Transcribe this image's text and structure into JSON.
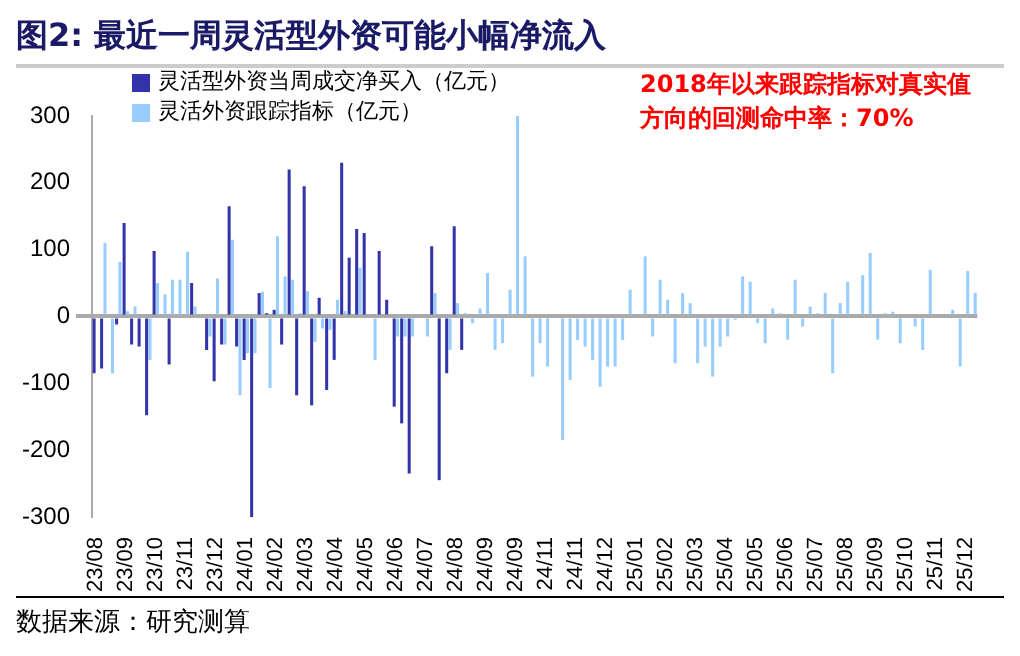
{
  "chart_data": {
    "type": "bar",
    "title": "图2:  最近一周灵活型外资可能小幅净流入",
    "categories": [
      "23/08",
      null,
      null,
      null,
      "23/09",
      null,
      null,
      null,
      "23/10",
      null,
      null,
      null,
      "23/11",
      null,
      null,
      null,
      "23/12",
      null,
      null,
      null,
      "24/01",
      null,
      null,
      null,
      "24/02",
      null,
      null,
      null,
      "24/03",
      null,
      null,
      null,
      "24/04",
      null,
      null,
      null,
      "24/05",
      null,
      null,
      null,
      "24/06",
      null,
      null,
      null,
      "24/07",
      null,
      null,
      null,
      "24/08",
      null,
      null,
      null,
      "24/09",
      null,
      null,
      null,
      "24/09",
      null,
      null,
      null,
      "24/11",
      null,
      null,
      null,
      "24/11",
      null,
      null,
      null,
      "24/12",
      null,
      null,
      null,
      "25/01",
      null,
      null,
      null,
      "25/02",
      null,
      null,
      null,
      "25/03",
      null,
      null,
      null,
      "25/04",
      null,
      null,
      null,
      "25/05",
      null,
      null,
      null,
      "25/06",
      null,
      null,
      null,
      "25/07",
      null,
      null,
      null,
      "25/08",
      null,
      null,
      null,
      "25/09",
      null,
      null,
      null,
      "25/10",
      null,
      null,
      null,
      "25/11",
      null,
      null,
      null,
      "25/12",
      null
    ],
    "series": [
      {
        "name": "灵活型外资当周成交净买入（亿元）",
        "color": "#3333aa",
        "values": [
          -85,
          -78,
          null,
          -12,
          140,
          -42,
          -45,
          -148,
          98,
          null,
          -72,
          null,
          null,
          50,
          null,
          -50,
          -97,
          -42,
          165,
          -45,
          -65,
          -300,
          35,
          5,
          10,
          -42,
          220,
          -118,
          195,
          -133,
          28,
          -110,
          -65,
          230,
          88,
          131,
          125,
          null,
          98,
          25,
          -135,
          -160,
          -235,
          null,
          null,
          105,
          -245,
          -85,
          135,
          -50,
          null,
          null,
          null,
          null,
          null,
          null,
          null,
          null,
          null,
          null,
          null,
          null,
          null,
          null,
          null,
          null,
          null,
          null,
          null,
          null,
          null,
          null,
          null,
          null,
          null,
          null,
          null,
          null,
          null,
          null,
          null,
          null,
          null,
          null,
          null,
          null,
          null,
          null,
          null,
          null,
          null,
          null,
          null,
          null,
          null,
          null,
          null,
          null,
          null,
          null,
          null,
          null,
          null,
          null,
          null,
          null,
          null,
          null,
          null,
          null,
          null,
          null,
          null,
          null,
          null,
          null,
          null,
          null
        ]
      },
      {
        "name": "灵活外资跟踪指标（亿元）",
        "color": "#99ccff",
        "values": [
          null,
          110,
          -85,
          82,
          8,
          15,
          null,
          -65,
          50,
          33,
          55,
          55,
          97,
          15,
          null,
          -30,
          57,
          -42,
          115,
          -118,
          -55,
          -55,
          37,
          -107,
          120,
          60,
          55,
          5,
          38,
          -38,
          -18,
          -20,
          25,
          8,
          null,
          73,
          null,
          -65,
          null,
          null,
          -30,
          -30,
          -30,
          null,
          -30,
          35,
          null,
          -50,
          20,
          5,
          -10,
          12,
          65,
          -50,
          -40,
          40,
          300,
          90,
          -90,
          -40,
          -75,
          null,
          -185,
          -95,
          -35,
          -45,
          -65,
          -105,
          -75,
          -75,
          -35,
          40,
          null,
          90,
          -30,
          55,
          25,
          -70,
          35,
          20,
          -70,
          -45,
          -90,
          -45,
          -30,
          -5,
          60,
          52,
          -10,
          -40,
          12,
          5,
          -35,
          55,
          -15,
          15,
          5,
          35,
          -85,
          20,
          52,
          null,
          62,
          95,
          -35,
          5,
          7,
          -40,
          null,
          -15,
          -50,
          70,
          null,
          null,
          10,
          -75,
          68,
          35
        ]
      }
    ],
    "ylim": [
      -300,
      300
    ],
    "yticks": [
      -300,
      -200,
      -100,
      0,
      100,
      200,
      300
    ],
    "legend": "top left",
    "annotations": [
      "2018年以来跟踪指标对真实值方向的回测命中率：70%",
      "数据来源：研究测算"
    ]
  }
}
